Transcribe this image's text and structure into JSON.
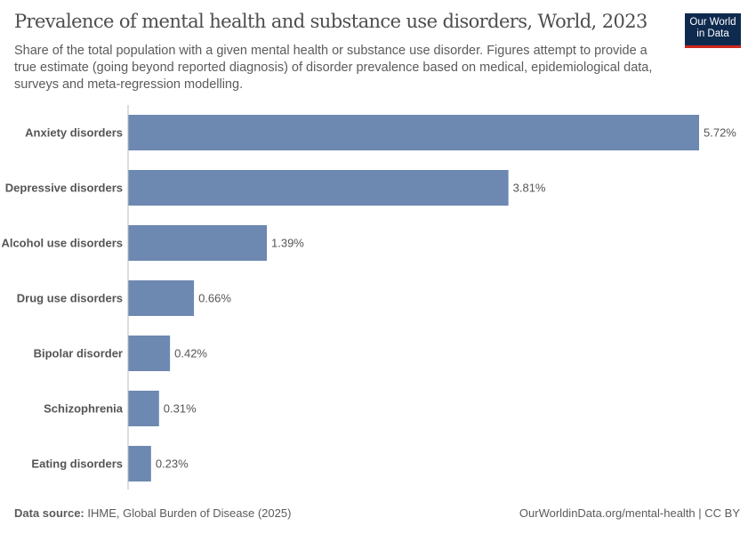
{
  "header": {
    "title": "Prevalence of mental health and substance use disorders, World, 2023",
    "subtitle": "Share of the total population with a given mental health or substance use disorder. Figures attempt to provide a true estimate (going beyond reported diagnosis) of disorder prevalence based on medical, epidemiological data, surveys and meta-regression modelling.",
    "logo_line1": "Our World",
    "logo_line2": "in Data"
  },
  "footer": {
    "source_label": "Data source:",
    "source_text": " IHME, Global Burden of Disease (2025)",
    "url_license": "OurWorldinData.org/mental-health | CC BY"
  },
  "colors": {
    "bar": "#6d88b1",
    "logo_bg": "#0f2a4f",
    "logo_accent": "#ce261e"
  },
  "chart_data": {
    "type": "bar",
    "orientation": "horizontal",
    "title": "Prevalence of mental health and substance use disorders, World, 2023",
    "categories": [
      "Anxiety disorders",
      "Depressive disorders",
      "Alcohol use disorders",
      "Drug use disorders",
      "Bipolar disorder",
      "Schizophrenia",
      "Eating disorders"
    ],
    "values": [
      5.72,
      3.81,
      1.39,
      0.66,
      0.42,
      0.31,
      0.23
    ],
    "labels": [
      "5.72%",
      "3.81%",
      "1.39%",
      "0.66%",
      "0.42%",
      "0.31%",
      "0.23%"
    ],
    "unit": "%",
    "xlim": [
      0,
      5.72
    ],
    "grid": false
  }
}
